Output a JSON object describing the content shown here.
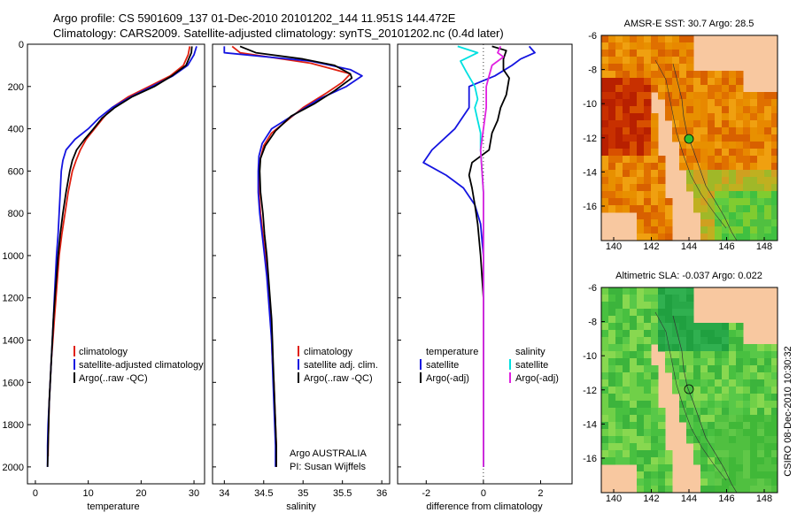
{
  "header": {
    "line1": "Argo profile: CS 5901609_137 01-Dec-2010 20101202_144 11.951S 144.472E",
    "line2": "Climatology: CARS2009. Satellite-adjusted climatology: synTS_20101202.nc (0.4d later)"
  },
  "colors": {
    "climatology": "#e02010",
    "satellite": "#1414e0",
    "argo": "#000000",
    "satellite_diff": "#00e0e0",
    "argo_adj_diff": "#e020e0",
    "land": "#f8c8a0",
    "float_marker": "#30c030"
  },
  "depth_axis": {
    "ticks": [
      0,
      200,
      400,
      600,
      800,
      1000,
      1200,
      1400,
      1600,
      1800,
      2000
    ],
    "ylim": [
      0,
      2080
    ]
  },
  "chart_data": [
    {
      "type": "line",
      "id": "temperature",
      "xlabel": "temperature",
      "xlim": [
        -1.5,
        32
      ],
      "xticks": [
        0,
        10,
        20,
        30
      ],
      "ylim": [
        0,
        2080
      ],
      "legend": [
        "climatology",
        "satellite-adjusted climatology",
        "Argo(..raw -QC)"
      ],
      "series": [
        {
          "name": "climatology",
          "color": "#e02010",
          "points": [
            [
              29.2,
              10
            ],
            [
              28.9,
              50
            ],
            [
              28.0,
              100
            ],
            [
              25.5,
              150
            ],
            [
              21.5,
              200
            ],
            [
              17.5,
              250
            ],
            [
              14.5,
              300
            ],
            [
              12.8,
              350
            ],
            [
              11.2,
              400
            ],
            [
              9.6,
              450
            ],
            [
              8.5,
              500
            ],
            [
              7.7,
              550
            ],
            [
              7.0,
              600
            ],
            [
              6.2,
              700
            ],
            [
              5.6,
              800
            ],
            [
              5.0,
              900
            ],
            [
              4.5,
              1000
            ],
            [
              4.2,
              1100
            ],
            [
              3.9,
              1200
            ],
            [
              3.6,
              1300
            ],
            [
              3.3,
              1400
            ],
            [
              3.0,
              1500
            ],
            [
              2.8,
              1600
            ],
            [
              2.6,
              1700
            ],
            [
              2.5,
              1800
            ],
            [
              2.4,
              1900
            ],
            [
              2.4,
              1950
            ]
          ]
        },
        {
          "name": "satellite-adjusted climatology",
          "color": "#1414e0",
          "points": [
            [
              30.5,
              10
            ],
            [
              30.0,
              50
            ],
            [
              28.8,
              100
            ],
            [
              26.0,
              150
            ],
            [
              22.0,
              200
            ],
            [
              18.0,
              250
            ],
            [
              14.5,
              300
            ],
            [
              12.0,
              350
            ],
            [
              10.0,
              400
            ],
            [
              7.5,
              450
            ],
            [
              5.8,
              500
            ],
            [
              5.2,
              550
            ],
            [
              4.9,
              600
            ],
            [
              4.7,
              700
            ],
            [
              4.5,
              800
            ],
            [
              4.3,
              900
            ],
            [
              4.0,
              1000
            ],
            [
              3.8,
              1100
            ],
            [
              3.6,
              1200
            ],
            [
              3.4,
              1300
            ],
            [
              3.2,
              1400
            ],
            [
              3.0,
              1500
            ],
            [
              2.8,
              1600
            ],
            [
              2.6,
              1700
            ],
            [
              2.4,
              1800
            ],
            [
              2.3,
              1900
            ],
            [
              2.3,
              2000
            ]
          ]
        },
        {
          "name": "Argo(..raw -QC)",
          "color": "#000000",
          "points": [
            [
              29.6,
              10
            ],
            [
              29.5,
              40
            ],
            [
              28.5,
              100
            ],
            [
              25.8,
              150
            ],
            [
              22.5,
              200
            ],
            [
              18.2,
              250
            ],
            [
              15.0,
              300
            ],
            [
              12.6,
              350
            ],
            [
              11.0,
              400
            ],
            [
              9.3,
              450
            ],
            [
              7.8,
              500
            ],
            [
              7.0,
              550
            ],
            [
              6.5,
              600
            ],
            [
              5.8,
              700
            ],
            [
              5.2,
              800
            ],
            [
              4.7,
              900
            ],
            [
              4.3,
              1000
            ],
            [
              4.0,
              1100
            ],
            [
              3.7,
              1200
            ],
            [
              3.4,
              1300
            ],
            [
              3.2,
              1400
            ],
            [
              3.0,
              1500
            ],
            [
              2.8,
              1600
            ],
            [
              2.6,
              1700
            ],
            [
              2.5,
              1800
            ],
            [
              2.4,
              1900
            ],
            [
              2.3,
              2000
            ]
          ]
        }
      ]
    },
    {
      "type": "line",
      "id": "salinity",
      "xlabel": "salinity",
      "xticks": [
        34,
        34.5,
        35,
        35.5,
        36
      ],
      "xtick_labels": [
        "34",
        "34.5",
        "35",
        "35.5",
        "36"
      ],
      "xlim": [
        33.85,
        36.1
      ],
      "ylim": [
        0,
        2080
      ],
      "legend": [
        "climatology",
        "satellite adj. clim.",
        "Argo(..raw -QC)"
      ],
      "annotation": [
        "Argo AUSTRALIA",
        "PI: Susan Wijffels"
      ],
      "series": [
        {
          "name": "climatology",
          "color": "#e02010",
          "points": [
            [
              34.1,
              10
            ],
            [
              34.2,
              40
            ],
            [
              35.1,
              90
            ],
            [
              35.6,
              140
            ],
            [
              35.5,
              180
            ],
            [
              35.3,
              230
            ],
            [
              35.0,
              300
            ],
            [
              34.8,
              360
            ],
            [
              34.6,
              420
            ],
            [
              34.5,
              480
            ],
            [
              34.46,
              540
            ],
            [
              34.44,
              600
            ],
            [
              34.44,
              700
            ],
            [
              34.46,
              800
            ],
            [
              34.49,
              900
            ],
            [
              34.52,
              1000
            ],
            [
              34.55,
              1100
            ],
            [
              34.57,
              1200
            ],
            [
              34.59,
              1300
            ],
            [
              34.6,
              1400
            ],
            [
              34.61,
              1500
            ],
            [
              34.63,
              1600
            ],
            [
              34.64,
              1700
            ],
            [
              34.65,
              1800
            ],
            [
              34.66,
              1900
            ],
            [
              34.66,
              2000
            ]
          ]
        },
        {
          "name": "satellite adj. clim.",
          "color": "#1414e0",
          "points": [
            [
              34.0,
              10
            ],
            [
              34.0,
              40
            ],
            [
              35.1,
              80
            ],
            [
              35.6,
              120
            ],
            [
              35.75,
              150
            ],
            [
              35.55,
              200
            ],
            [
              35.2,
              260
            ],
            [
              34.9,
              330
            ],
            [
              34.6,
              400
            ],
            [
              34.48,
              470
            ],
            [
              34.44,
              530
            ],
            [
              34.43,
              600
            ],
            [
              34.43,
              700
            ],
            [
              34.45,
              800
            ],
            [
              34.48,
              900
            ],
            [
              34.51,
              1000
            ],
            [
              34.54,
              1100
            ],
            [
              34.56,
              1200
            ],
            [
              34.58,
              1300
            ],
            [
              34.6,
              1400
            ],
            [
              34.61,
              1500
            ],
            [
              34.62,
              1600
            ],
            [
              34.63,
              1700
            ],
            [
              34.64,
              1800
            ],
            [
              34.65,
              1900
            ],
            [
              34.65,
              2000
            ]
          ]
        },
        {
          "name": "Argo(..raw -QC)",
          "color": "#000000",
          "points": [
            [
              34.2,
              10
            ],
            [
              34.4,
              40
            ],
            [
              35.0,
              70
            ],
            [
              35.4,
              100
            ],
            [
              35.6,
              140
            ],
            [
              35.62,
              160
            ],
            [
              35.4,
              220
            ],
            [
              35.15,
              280
            ],
            [
              34.85,
              340
            ],
            [
              34.65,
              410
            ],
            [
              34.52,
              480
            ],
            [
              34.46,
              540
            ],
            [
              34.45,
              600
            ],
            [
              34.46,
              700
            ],
            [
              34.49,
              800
            ],
            [
              34.51,
              900
            ],
            [
              34.54,
              1000
            ],
            [
              34.56,
              1100
            ],
            [
              34.58,
              1200
            ],
            [
              34.6,
              1300
            ],
            [
              34.61,
              1400
            ],
            [
              34.62,
              1500
            ],
            [
              34.63,
              1600
            ],
            [
              34.64,
              1700
            ],
            [
              34.65,
              1800
            ],
            [
              34.66,
              1900
            ],
            [
              34.66,
              2000
            ]
          ]
        }
      ]
    },
    {
      "type": "line",
      "id": "difference",
      "xlabel": "difference from climatology",
      "xticks": [
        -2,
        0,
        2
      ],
      "xlim": [
        -3.0,
        3.1
      ],
      "ylim": [
        0,
        2080
      ],
      "legend_left_title": "temperature",
      "legend_right_title": "salinity",
      "legend_left": [
        "satellite",
        "Argo(-adj)"
      ],
      "legend_right": [
        "satellite",
        "Argo(-adj)"
      ],
      "series": [
        {
          "name": "temperature satellite",
          "color": "#1414e0",
          "points": [
            [
              1.6,
              10
            ],
            [
              1.8,
              40
            ],
            [
              1.3,
              70
            ],
            [
              1.0,
              100
            ],
            [
              0.4,
              150
            ],
            [
              -0.5,
              200
            ],
            [
              -0.5,
              300
            ],
            [
              -1.0,
              400
            ],
            [
              -1.8,
              500
            ],
            [
              -2.1,
              560
            ],
            [
              -1.3,
              620
            ],
            [
              -0.7,
              680
            ],
            [
              -0.3,
              760
            ],
            [
              -0.1,
              850
            ],
            [
              0.0,
              1000
            ],
            [
              0.0,
              1200
            ],
            [
              0.0,
              1400
            ],
            [
              0.0,
              1600
            ],
            [
              0.0,
              1800
            ],
            [
              0.0,
              2000
            ]
          ]
        },
        {
          "name": "temperature Argo(-adj)",
          "color": "#000000",
          "points": [
            [
              0.3,
              10
            ],
            [
              0.8,
              30
            ],
            [
              0.7,
              70
            ],
            [
              0.7,
              120
            ],
            [
              0.9,
              160
            ],
            [
              0.8,
              240
            ],
            [
              0.6,
              300
            ],
            [
              0.5,
              360
            ],
            [
              0.3,
              420
            ],
            [
              0.2,
              500
            ],
            [
              -0.4,
              560
            ],
            [
              -0.5,
              620
            ],
            [
              -0.4,
              680
            ],
            [
              -0.3,
              760
            ],
            [
              -0.2,
              850
            ],
            [
              -0.1,
              1000
            ],
            [
              0.0,
              1200
            ],
            [
              0.0,
              1400
            ],
            [
              0.0,
              1600
            ],
            [
              0.0,
              1800
            ],
            [
              0.0,
              2000
            ]
          ]
        },
        {
          "name": "salinity satellite",
          "color": "#00e0e0",
          "points": [
            [
              -0.9,
              10
            ],
            [
              -0.2,
              40
            ],
            [
              -0.8,
              80
            ],
            [
              -0.6,
              130
            ],
            [
              -0.3,
              200
            ],
            [
              -0.2,
              260
            ],
            [
              -0.3,
              300
            ],
            [
              -0.2,
              360
            ],
            [
              -0.1,
              420
            ],
            [
              -0.1,
              500
            ],
            [
              -0.05,
              600
            ],
            [
              0.0,
              700
            ],
            [
              0.0,
              800
            ],
            [
              0.0,
              1000
            ],
            [
              0.0,
              1400
            ],
            [
              0.0,
              2000
            ]
          ]
        },
        {
          "name": "salinity Argo(-adj)",
          "color": "#e020e0",
          "points": [
            [
              0.6,
              10
            ],
            [
              0.5,
              40
            ],
            [
              0.7,
              60
            ],
            [
              0.3,
              100
            ],
            [
              0.2,
              150
            ],
            [
              0.1,
              200
            ],
            [
              0.1,
              300
            ],
            [
              0.0,
              400
            ],
            [
              -0.1,
              500
            ],
            [
              -0.05,
              600
            ],
            [
              0.0,
              700
            ],
            [
              0.0,
              800
            ],
            [
              0.0,
              1000
            ],
            [
              0.0,
              1400
            ],
            [
              0.0,
              2000
            ]
          ]
        }
      ]
    }
  ],
  "maps": {
    "sst": {
      "title": "AMSR-E SST: 30.7 Argo: 28.5"
    },
    "sla": {
      "title": "Altimetric SLA: -0.037 Argo: 0.022"
    },
    "lat_ticks": [
      "-6",
      "-8",
      "-10",
      "-12",
      "-14",
      "-16"
    ],
    "lon_ticks": [
      "140",
      "142",
      "144",
      "146",
      "148"
    ]
  },
  "credit": "CSIRO 08-Dec-2010 10:30:32"
}
